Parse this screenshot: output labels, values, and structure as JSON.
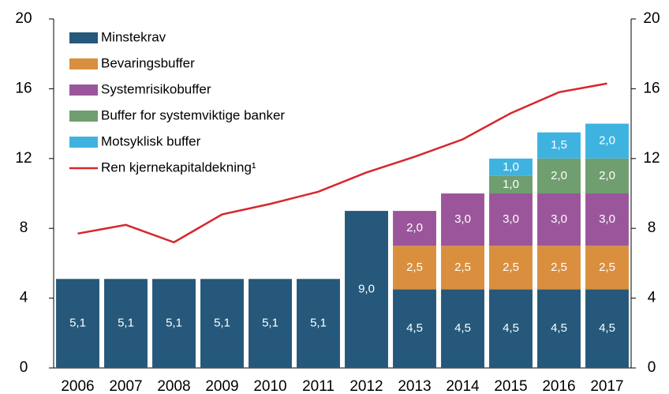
{
  "chart_data": {
    "type": "bar",
    "categories": [
      "2006",
      "2007",
      "2008",
      "2009",
      "2010",
      "2011",
      "2012",
      "2013",
      "2014",
      "2015",
      "2016",
      "2017"
    ],
    "series": [
      {
        "name": "Minstekrav",
        "color": "#25587a",
        "values": [
          5.1,
          5.1,
          5.1,
          5.1,
          5.1,
          5.1,
          9.0,
          4.5,
          4.5,
          4.5,
          4.5,
          4.5
        ],
        "value_labels": [
          "5,1",
          "5,1",
          "5,1",
          "5,1",
          "5,1",
          "5,1",
          "9,0",
          "4,5",
          "4,5",
          "4,5",
          "4,5",
          "4,5"
        ]
      },
      {
        "name": "Bevaringsbuffer",
        "color": "#d98f3e",
        "values": [
          null,
          null,
          null,
          null,
          null,
          null,
          null,
          2.5,
          2.5,
          2.5,
          2.5,
          2.5
        ],
        "value_labels": [
          null,
          null,
          null,
          null,
          null,
          null,
          null,
          "2,5",
          "2,5",
          "2,5",
          "2,5",
          "2,5"
        ]
      },
      {
        "name": "Systemrisikobuffer",
        "color": "#9b569b",
        "values": [
          null,
          null,
          null,
          null,
          null,
          null,
          null,
          2.0,
          3.0,
          3.0,
          3.0,
          3.0
        ],
        "value_labels": [
          null,
          null,
          null,
          null,
          null,
          null,
          null,
          "2,0",
          "3,0",
          "3,0",
          "3,0",
          "3,0"
        ]
      },
      {
        "name": "Buffer for systemviktige banker",
        "color": "#6f9e6f",
        "values": [
          null,
          null,
          null,
          null,
          null,
          null,
          null,
          null,
          null,
          1.0,
          2.0,
          2.0
        ],
        "value_labels": [
          null,
          null,
          null,
          null,
          null,
          null,
          null,
          null,
          null,
          "1,0",
          "2,0",
          "2,0"
        ]
      },
      {
        "name": "Motsyklisk buffer",
        "color": "#3fb3e0",
        "values": [
          null,
          null,
          null,
          null,
          null,
          null,
          null,
          null,
          null,
          1.0,
          1.5,
          2.0
        ],
        "value_labels": [
          null,
          null,
          null,
          null,
          null,
          null,
          null,
          null,
          null,
          "1,0",
          "1,5",
          "2,0"
        ]
      },
      {
        "name": "Ren kjernekapitaldekning¹",
        "type": "line",
        "color": "#d7262c",
        "values": [
          7.7,
          8.2,
          7.2,
          8.8,
          9.4,
          10.1,
          11.2,
          12.1,
          13.1,
          14.6,
          15.8,
          16.3
        ]
      }
    ],
    "ylim": [
      0,
      20
    ],
    "yticks": [
      0,
      4,
      8,
      12,
      16,
      20
    ],
    "y2lim": [
      0,
      20
    ],
    "y2ticks": [
      0,
      4,
      8,
      12,
      16,
      20
    ],
    "legend": "top-left"
  }
}
